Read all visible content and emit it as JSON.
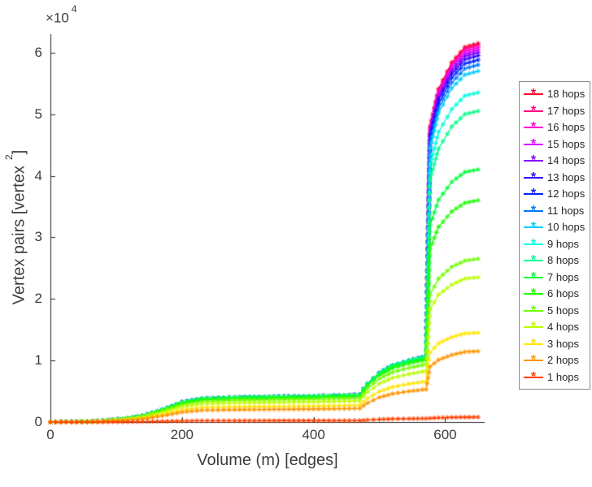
{
  "figure": {
    "background": "#ffffff",
    "axis_color": "#262626",
    "text_color": "#3c3c3c"
  },
  "chart_data": {
    "type": "line",
    "title": "",
    "xlabel": "Volume (m) [edges]",
    "ylabel": "Vertex pairs [vertex 2]",
    "ylabel_parts": {
      "base": "Vertex pairs [vertex",
      "sup": "2",
      "close": "]"
    },
    "y_offset_label": {
      "base": "×10",
      "exp": "4"
    },
    "y_unit": "values are in units of 10^4 vertex pairs",
    "marker": "*",
    "grid": false,
    "legend_position": "right",
    "xlim": [
      0,
      660
    ],
    "ylim": [
      0,
      6.3
    ],
    "x_ticks": [
      0,
      200,
      400,
      600
    ],
    "y_ticks": [
      0,
      1,
      2,
      3,
      4,
      5,
      6
    ],
    "x": [
      0,
      40,
      80,
      110,
      140,
      170,
      200,
      230,
      280,
      340,
      400,
      470,
      482,
      500,
      520,
      545,
      565,
      571,
      577,
      590,
      610,
      630,
      650
    ],
    "series": [
      {
        "name": "18 hops",
        "color": "#ff002b",
        "y": [
          0,
          0.005,
          0.02,
          0.05,
          0.1,
          0.2,
          0.32,
          0.38,
          0.4,
          0.41,
          0.42,
          0.44,
          0.62,
          0.8,
          0.92,
          1.0,
          1.05,
          1.06,
          4.8,
          5.41,
          5.84,
          6.09,
          6.15
        ]
      },
      {
        "name": "17 hops",
        "color": "#ff0080",
        "y": [
          0,
          0.005,
          0.02,
          0.05,
          0.1,
          0.2,
          0.32,
          0.38,
          0.4,
          0.41,
          0.42,
          0.44,
          0.62,
          0.8,
          0.92,
          1.0,
          1.05,
          1.06,
          4.77,
          5.39,
          5.81,
          6.06,
          6.12
        ]
      },
      {
        "name": "16 hops",
        "color": "#ff00d5",
        "y": [
          0,
          0.005,
          0.02,
          0.05,
          0.1,
          0.2,
          0.32,
          0.38,
          0.4,
          0.41,
          0.42,
          0.44,
          0.62,
          0.8,
          0.92,
          1.0,
          1.05,
          1.06,
          4.74,
          5.35,
          5.78,
          6.02,
          6.08
        ]
      },
      {
        "name": "15 hops",
        "color": "#d900ff",
        "y": [
          0,
          0.005,
          0.02,
          0.05,
          0.1,
          0.2,
          0.32,
          0.38,
          0.4,
          0.41,
          0.42,
          0.44,
          0.62,
          0.8,
          0.92,
          1.0,
          1.05,
          1.06,
          4.71,
          5.32,
          5.74,
          5.98,
          6.04
        ]
      },
      {
        "name": "14 hops",
        "color": "#8400ff",
        "y": [
          0,
          0.005,
          0.02,
          0.05,
          0.1,
          0.2,
          0.32,
          0.38,
          0.4,
          0.41,
          0.42,
          0.44,
          0.62,
          0.8,
          0.92,
          1.0,
          1.05,
          1.06,
          4.68,
          5.28,
          5.7,
          5.94,
          6.0
        ]
      },
      {
        "name": "13 hops",
        "color": "#2f00ff",
        "y": [
          0,
          0.005,
          0.02,
          0.05,
          0.1,
          0.2,
          0.32,
          0.38,
          0.4,
          0.41,
          0.42,
          0.44,
          0.62,
          0.8,
          0.92,
          1.0,
          1.05,
          1.06,
          4.64,
          5.24,
          5.65,
          5.89,
          5.95
        ]
      },
      {
        "name": "12 hops",
        "color": "#0022ff",
        "y": [
          0,
          0.005,
          0.02,
          0.05,
          0.1,
          0.2,
          0.32,
          0.38,
          0.4,
          0.41,
          0.42,
          0.44,
          0.62,
          0.8,
          0.92,
          1.0,
          1.05,
          1.06,
          4.59,
          5.17,
          5.59,
          5.82,
          5.88
        ]
      },
      {
        "name": "11 hops",
        "color": "#0077ff",
        "y": [
          0,
          0.005,
          0.02,
          0.05,
          0.1,
          0.2,
          0.32,
          0.38,
          0.4,
          0.41,
          0.42,
          0.44,
          0.62,
          0.8,
          0.92,
          1.0,
          1.05,
          1.06,
          4.52,
          5.1,
          5.51,
          5.74,
          5.8
        ]
      },
      {
        "name": "10 hops",
        "color": "#00ccff",
        "y": [
          0,
          0.005,
          0.02,
          0.05,
          0.1,
          0.2,
          0.32,
          0.38,
          0.4,
          0.41,
          0.42,
          0.44,
          0.62,
          0.8,
          0.92,
          1.0,
          1.05,
          1.06,
          4.45,
          5.02,
          5.42,
          5.64,
          5.7
        ]
      },
      {
        "name": "9 hops",
        "color": "#00ffe1",
        "y": [
          0,
          0.005,
          0.02,
          0.05,
          0.1,
          0.2,
          0.32,
          0.38,
          0.4,
          0.41,
          0.42,
          0.44,
          0.62,
          0.8,
          0.92,
          1.0,
          1.05,
          1.06,
          4.17,
          4.71,
          5.08,
          5.3,
          5.35
        ]
      },
      {
        "name": "8 hops",
        "color": "#00ff8c",
        "y": [
          0,
          0.005,
          0.02,
          0.05,
          0.1,
          0.2,
          0.32,
          0.38,
          0.4,
          0.41,
          0.42,
          0.44,
          0.62,
          0.8,
          0.92,
          1.0,
          1.05,
          1.06,
          3.94,
          4.44,
          4.8,
          5.0,
          5.05
        ]
      },
      {
        "name": "7 hops",
        "color": "#00ff37",
        "y": [
          0,
          0.005,
          0.02,
          0.049,
          0.098,
          0.196,
          0.314,
          0.372,
          0.392,
          0.402,
          0.412,
          0.431,
          0.608,
          0.784,
          0.902,
          0.98,
          1.029,
          1.039,
          3.2,
          3.61,
          3.9,
          4.06,
          4.1
        ]
      },
      {
        "name": "6 hops",
        "color": "#1eff00",
        "y": [
          0,
          0.005,
          0.019,
          0.048,
          0.095,
          0.19,
          0.304,
          0.361,
          0.38,
          0.39,
          0.399,
          0.418,
          0.589,
          0.76,
          0.874,
          0.95,
          0.998,
          1.007,
          2.81,
          3.17,
          3.42,
          3.56,
          3.6
        ]
      },
      {
        "name": "5 hops",
        "color": "#6eff00",
        "y": [
          0,
          0.004,
          0.018,
          0.044,
          0.088,
          0.176,
          0.282,
          0.334,
          0.352,
          0.361,
          0.37,
          0.387,
          0.546,
          0.704,
          0.81,
          0.88,
          0.924,
          0.933,
          2.07,
          2.33,
          2.52,
          2.62,
          2.65
        ]
      },
      {
        "name": "4 hops",
        "color": "#bbff00",
        "y": [
          0,
          0.004,
          0.016,
          0.039,
          0.078,
          0.156,
          0.25,
          0.296,
          0.312,
          0.32,
          0.328,
          0.343,
          0.484,
          0.624,
          0.718,
          0.78,
          0.819,
          0.827,
          1.83,
          2.07,
          2.23,
          2.33,
          2.35
        ]
      },
      {
        "name": "3 hops",
        "color": "#ffe600",
        "y": [
          0,
          0.003,
          0.012,
          0.031,
          0.062,
          0.124,
          0.198,
          0.236,
          0.248,
          0.254,
          0.26,
          0.273,
          0.384,
          0.496,
          0.57,
          0.62,
          0.651,
          0.657,
          1.13,
          1.28,
          1.38,
          1.44,
          1.45
        ]
      },
      {
        "name": "2 hops",
        "color": "#ff9500",
        "y": [
          0,
          0.003,
          0.01,
          0.025,
          0.05,
          0.1,
          0.16,
          0.19,
          0.2,
          0.205,
          0.21,
          0.22,
          0.31,
          0.4,
          0.46,
          0.5,
          0.525,
          0.53,
          0.9,
          1.01,
          1.09,
          1.14,
          1.15
        ]
      },
      {
        "name": "1 hops",
        "color": "#ff4000",
        "y": [
          0,
          0,
          0.001,
          0.003,
          0.006,
          0.011,
          0.018,
          0.021,
          0.022,
          0.023,
          0.023,
          0.024,
          0.034,
          0.044,
          0.051,
          0.055,
          0.058,
          0.058,
          0.062,
          0.07,
          0.076,
          0.079,
          0.08
        ]
      }
    ]
  }
}
